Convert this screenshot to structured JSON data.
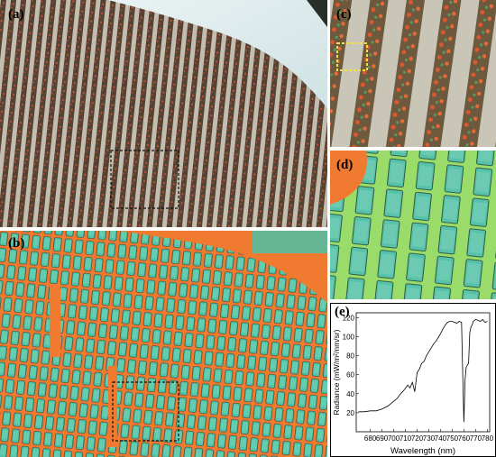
{
  "panels": {
    "a": {
      "label": "(a)"
    },
    "b": {
      "label": "(b)"
    },
    "c": {
      "label": "(c)"
    },
    "d": {
      "label": "(d)"
    },
    "e": {
      "label": "(e)"
    }
  },
  "colors": {
    "rgb_row": "#5b4a3a",
    "rgb_soil": "#d9d2c6",
    "veg_row": "#4fc2a8",
    "veg_edge": "#f06a2a",
    "background_warm": "#f07a30",
    "yellow_highlight": "#f4e040"
  },
  "chart_data": {
    "type": "line",
    "xlabel": "Wavelength (nm)",
    "ylabel": "Radiance (mW/m²/nm/sr)",
    "xlim": [
      668,
      782
    ],
    "ylim": [
      0,
      125
    ],
    "xticks": [
      "680",
      "690",
      "700",
      "710",
      "720",
      "730",
      "740",
      "750",
      "760",
      "770",
      "780"
    ],
    "yticks": [
      "20",
      "40",
      "60",
      "80",
      "100",
      "120"
    ],
    "grid": false,
    "series": [
      {
        "x": [
          670,
          675,
          680,
          685,
          690,
          695,
          700,
          703,
          706,
          709,
          712,
          714,
          716,
          718,
          720,
          722,
          724,
          726,
          728,
          730,
          732,
          734,
          736,
          738,
          740,
          742,
          744,
          746,
          748,
          750,
          752,
          754,
          756,
          758,
          759,
          760,
          761,
          762,
          763,
          764,
          765,
          766,
          767,
          768,
          770,
          772,
          774,
          776,
          778,
          780
        ],
        "values": [
          21,
          21,
          22,
          22,
          24,
          27,
          32,
          35,
          40,
          44,
          49,
          46,
          52,
          42,
          62,
          66,
          72,
          74,
          80,
          84,
          88,
          92,
          95,
          99,
          103,
          108,
          112,
          115,
          116,
          116,
          115,
          114,
          116,
          115,
          60,
          10,
          55,
          68,
          70,
          72,
          104,
          110,
          112,
          116,
          118,
          117,
          116,
          118,
          115,
          116
        ]
      }
    ]
  }
}
